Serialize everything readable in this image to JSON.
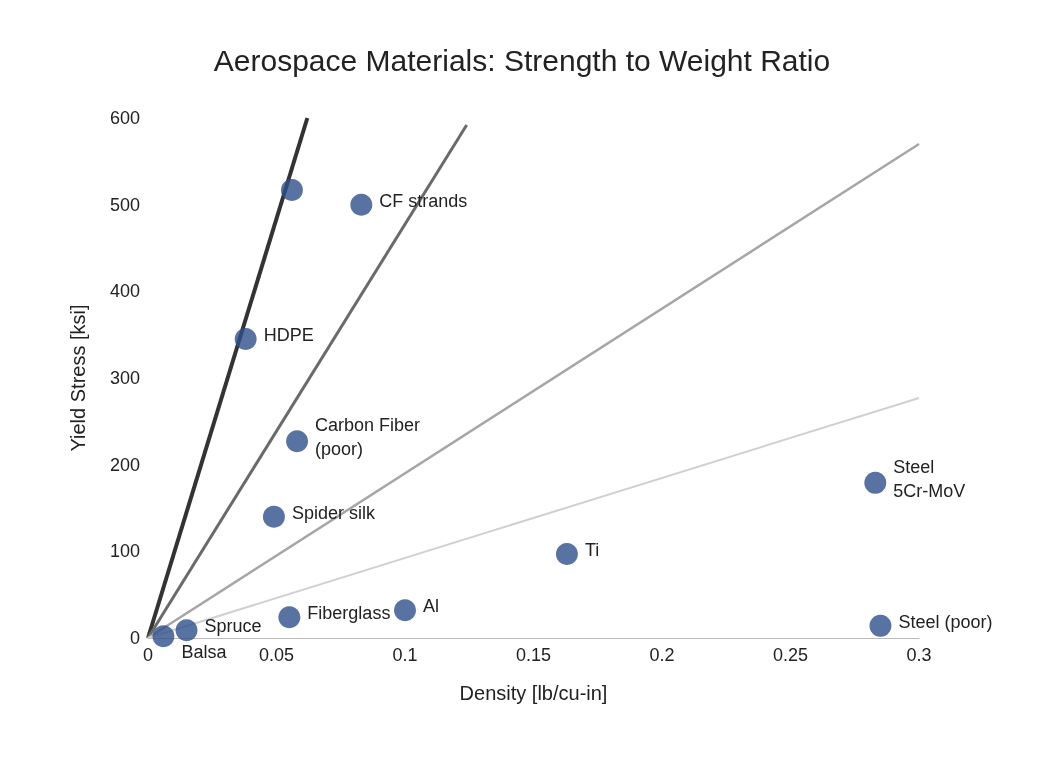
{
  "chart_data": {
    "type": "scatter",
    "title": "Aerospace Materials: Strength to Weight Ratio",
    "xlabel": "Density [lb/cu-in]",
    "ylabel": "Yield Stress [ksi]",
    "xlim": [
      0,
      0.3
    ],
    "xticks": [
      0,
      0.05,
      0.1,
      0.15,
      0.2,
      0.25,
      0.3
    ],
    "ylim": [
      0,
      600
    ],
    "yticks": [
      0,
      100,
      200,
      300,
      400,
      500,
      600
    ],
    "grid": false,
    "marker": "circle",
    "series": [
      {
        "type": "line",
        "marker": "none",
        "color": "#333333",
        "x": [
          0,
          0.062
        ],
        "values": [
          0,
          600
        ]
      },
      {
        "type": "line",
        "marker": "none",
        "color": "#6a6a6a",
        "x": [
          0,
          0.124
        ],
        "values": [
          0,
          592
        ]
      },
      {
        "type": "line",
        "marker": "none",
        "color": "#a6a6a6",
        "x": [
          0,
          0.3
        ],
        "values": [
          0,
          570
        ]
      },
      {
        "type": "line",
        "marker": "none",
        "color": "#d0d0d0",
        "x": [
          0,
          0.3
        ],
        "values": [
          0,
          277
        ]
      },
      {
        "color": "#2e4f8a",
        "x": [
          0.056,
          0.083,
          0.038,
          0.058,
          0.049,
          0.283,
          0.163,
          0.1,
          0.055,
          0.015,
          0.006,
          0.285
        ],
        "values": [
          517,
          500,
          345,
          227,
          140,
          179,
          97,
          32,
          24,
          9,
          2,
          14
        ]
      }
    ],
    "annotations": [
      {
        "text": "CF strands",
        "x": 0.083,
        "y": 500
      },
      {
        "text": "HDPE",
        "x": 0.038,
        "y": 345
      },
      {
        "text": "Carbon Fiber\n(poor)",
        "x": 0.058,
        "y": 227
      },
      {
        "text": "Spider silk",
        "x": 0.049,
        "y": 140
      },
      {
        "text": "Steel\n5Cr-MoV",
        "x": 0.283,
        "y": 179
      },
      {
        "text": "Ti",
        "x": 0.163,
        "y": 97
      },
      {
        "text": "Al",
        "x": 0.1,
        "y": 32
      },
      {
        "text": "Fiberglass",
        "x": 0.055,
        "y": 24
      },
      {
        "text": "Spruce",
        "x": 0.015,
        "y": 9
      },
      {
        "text": "Balsa",
        "x": 0.006,
        "y": 2
      },
      {
        "text": "Steel (poor)",
        "x": 0.285,
        "y": 14
      }
    ]
  }
}
